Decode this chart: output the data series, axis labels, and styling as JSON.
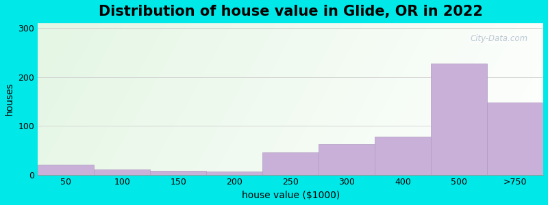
{
  "categories": [
    "50",
    "100",
    "150",
    "200",
    "250",
    "300",
    "400",
    "500",
    ">750"
  ],
  "values": [
    20,
    10,
    8,
    6,
    45,
    62,
    78,
    228,
    148
  ],
  "bar_color": "#c8b0d8",
  "bar_edge_color": "#b09ac0",
  "title": "Distribution of house value in Glide, OR in 2022",
  "xlabel": "house value ($1000)",
  "ylabel": "houses",
  "ylim": [
    0,
    310
  ],
  "yticks": [
    0,
    100,
    200,
    300
  ],
  "title_fontsize": 15,
  "axis_label_fontsize": 10,
  "tick_fontsize": 9,
  "background_color": "#00e8e8",
  "watermark_text": "City-Data.com",
  "grid_color": "#d0d0d0",
  "bin_edges": [
    0,
    1,
    2,
    3,
    4,
    5,
    6,
    7,
    8,
    9
  ],
  "tick_positions": [
    0.5,
    1.5,
    2.5,
    3.5,
    4.5,
    5.5,
    6.5,
    7.5,
    8.5
  ]
}
